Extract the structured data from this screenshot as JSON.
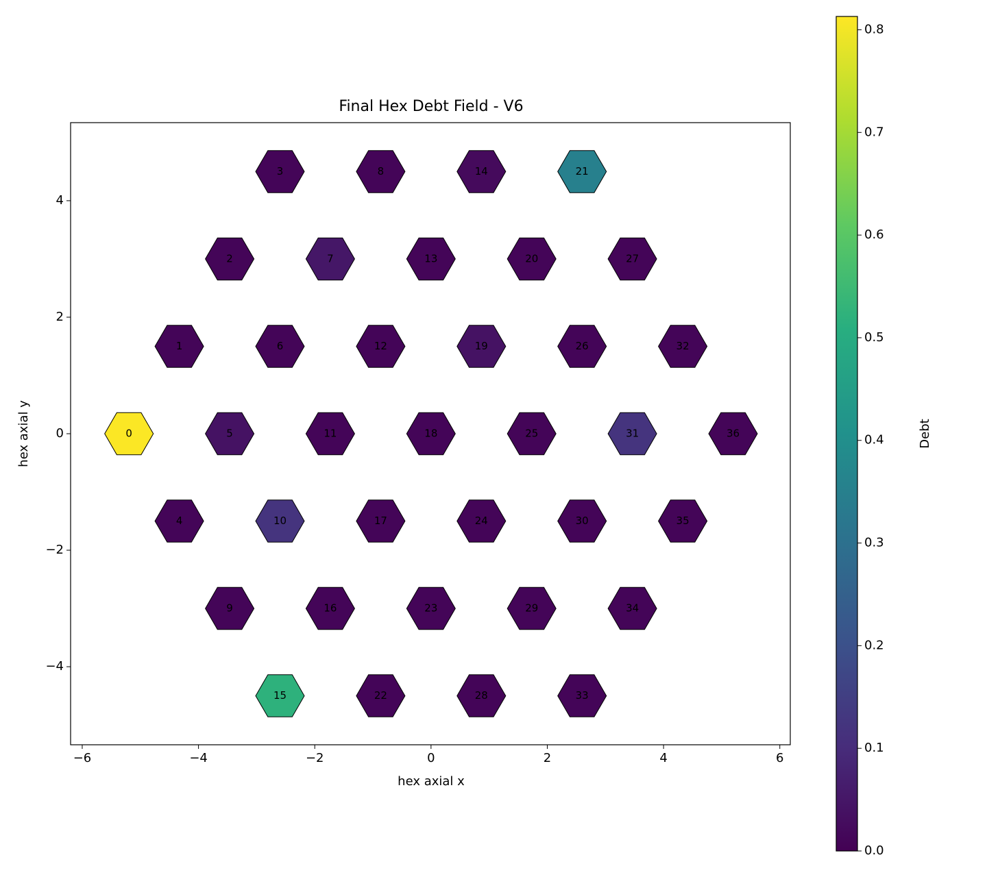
{
  "chart_data": {
    "type": "hexfield",
    "title": "Final Hex Debt Field - V6",
    "x_label": "hex axial x",
    "y_label": "hex axial y",
    "labels": [
      0,
      1,
      2,
      3,
      4,
      5,
      6,
      7,
      8,
      9,
      10,
      11,
      12,
      13,
      14,
      15,
      16,
      17,
      18,
      19,
      20,
      21,
      22,
      23,
      24,
      25,
      26,
      27,
      28,
      29,
      30,
      31,
      32,
      33,
      34,
      35,
      36
    ],
    "x": [
      -5.196,
      -4.33,
      -3.464,
      -2.598,
      -4.33,
      -3.464,
      -2.598,
      -1.732,
      -0.866,
      -3.464,
      -2.598,
      -1.732,
      -0.866,
      0,
      0.866,
      -2.598,
      -1.732,
      -0.866,
      0,
      0.866,
      1.732,
      2.598,
      -0.866,
      0,
      0.866,
      1.732,
      2.598,
      3.464,
      0.866,
      1.732,
      2.598,
      3.464,
      4.33,
      2.598,
      3.464,
      4.33,
      5.196
    ],
    "y": [
      0,
      1.5,
      3,
      4.5,
      -1.5,
      0,
      1.5,
      3,
      4.5,
      -3,
      -1.5,
      0,
      1.5,
      3,
      4.5,
      -4.5,
      -3,
      -1.5,
      0,
      1.5,
      3,
      4.5,
      -4.5,
      -3,
      -1.5,
      0,
      1.5,
      3,
      -4.5,
      -3,
      -1.5,
      0,
      1.5,
      -4.5,
      -3,
      -1.5,
      0
    ],
    "values": [
      0.81,
      0.01,
      0.01,
      0.01,
      0.01,
      0.04,
      0.01,
      0.05,
      0.01,
      0.01,
      0.12,
      0.01,
      0.01,
      0.01,
      0.02,
      0.52,
      0.01,
      0.01,
      0.01,
      0.04,
      0.01,
      0.35,
      0.01,
      0.01,
      0.01,
      0.01,
      0.01,
      0.01,
      0.01,
      0.01,
      0.01,
      0.12,
      0.01,
      0.01,
      0.01,
      0.01,
      0.01
    ],
    "colormap": "viridis",
    "xlim": [
      -6.2,
      6.18
    ],
    "ylim": [
      -5.34,
      5.34
    ],
    "xticks": [
      {
        "value": -6,
        "label": "−6"
      },
      {
        "value": -4,
        "label": "−4"
      },
      {
        "value": -2,
        "label": "−2"
      },
      0,
      2,
      4,
      6
    ],
    "yticks": [
      {
        "value": -4,
        "label": "−4"
      },
      {
        "value": -2,
        "label": "−2"
      },
      0,
      2,
      4
    ],
    "colorbar": {
      "label": "Debt",
      "lim": [
        0,
        0.813
      ],
      "ticks": [
        {
          "value": 0,
          "label": "0.0"
        },
        0.1,
        0.2,
        0.3,
        0.4,
        0.5,
        0.6,
        0.7,
        0.8
      ]
    }
  }
}
